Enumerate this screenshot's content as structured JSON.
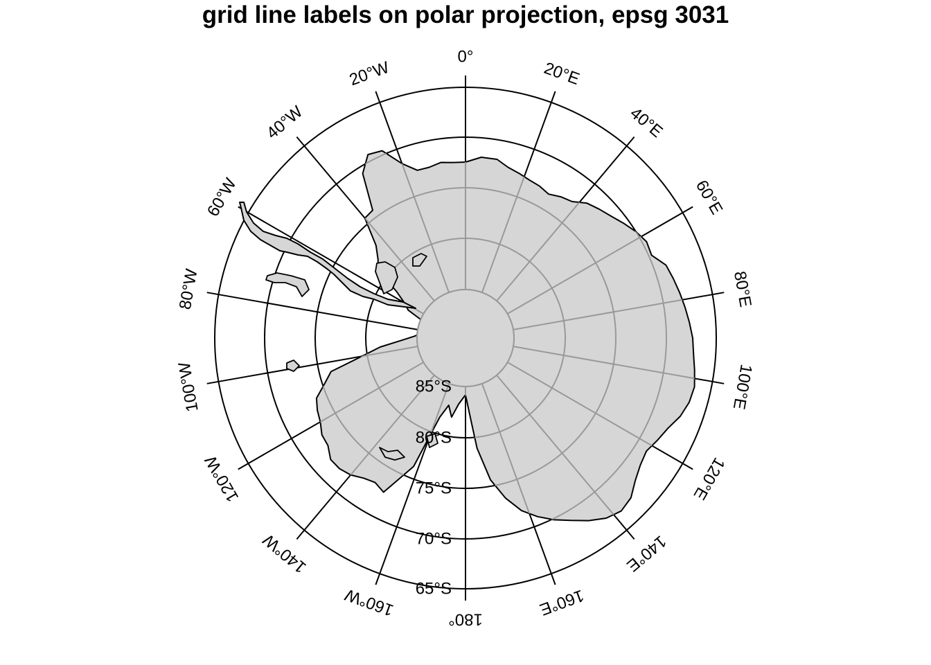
{
  "title": "grid line labels on polar projection, epsg 3031",
  "colors": {
    "land_fill": "#d6d6d6",
    "coastline": "#000000",
    "graticule_inside_land": "#999999",
    "graticule_outside_land": "#000000",
    "background": "#ffffff"
  },
  "map": {
    "projection": "epsg 3031",
    "latitude_circles": [
      {
        "lat": -85,
        "label": "85°S"
      },
      {
        "lat": -80,
        "label": "80°S"
      },
      {
        "lat": -75,
        "label": "75°S"
      },
      {
        "lat": -70,
        "label": "70°S"
      },
      {
        "lat": -65,
        "label": "65°S"
      }
    ],
    "meridians": [
      {
        "lon": 0,
        "label": "0°"
      },
      {
        "lon": 20,
        "label": "20°E"
      },
      {
        "lon": 40,
        "label": "40°E"
      },
      {
        "lon": 60,
        "label": "60°E"
      },
      {
        "lon": 80,
        "label": "80°E"
      },
      {
        "lon": 100,
        "label": "100°E"
      },
      {
        "lon": 120,
        "label": "120°E"
      },
      {
        "lon": 140,
        "label": "140°E"
      },
      {
        "lon": 160,
        "label": "160°E"
      },
      {
        "lon": 180,
        "label": "180°"
      },
      {
        "lon": -160,
        "label": "160°W"
      },
      {
        "lon": -140,
        "label": "140°W"
      },
      {
        "lon": -120,
        "label": "120°W"
      },
      {
        "lon": -100,
        "label": "100°W"
      },
      {
        "lon": -80,
        "label": "80°W"
      },
      {
        "lon": -60,
        "label": "60°W"
      },
      {
        "lon": -40,
        "label": "40°W"
      },
      {
        "lon": -20,
        "label": "20°W"
      }
    ],
    "landmass": "Antarctica"
  }
}
